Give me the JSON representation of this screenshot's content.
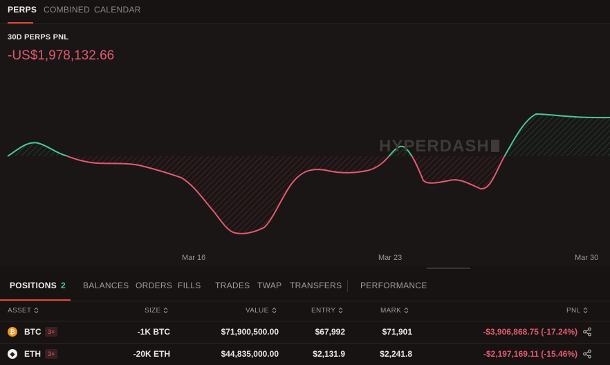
{
  "top_tabs": [
    {
      "label": "PERPS",
      "active": true
    },
    {
      "label": "COMBINED",
      "active": false
    },
    {
      "label": "CALENDAR",
      "active": false
    }
  ],
  "pnl": {
    "title": "30D PERPS PNL",
    "value": "-US$1,978,132.66"
  },
  "watermark": "HYPERDASH",
  "chart_data": {
    "type": "line",
    "x_tick_labels": [
      "Mar 16",
      "Mar 23",
      "Mar 30"
    ],
    "baseline": 0,
    "colors": {
      "positive": "#4cc79a",
      "negative": "#e45a6e"
    }
  },
  "position_tabs": {
    "items": [
      {
        "label": "POSITIONS",
        "badge": "2",
        "active": true
      },
      {
        "label": "BALANCES"
      },
      {
        "label": "ORDERS"
      },
      {
        "label": "FILLS"
      },
      {
        "label": "TRADES"
      },
      {
        "label": "TWAP"
      },
      {
        "label": "TRANSFERS"
      },
      {
        "label": "PERFORMANCE"
      }
    ]
  },
  "table": {
    "headers": {
      "asset": "ASSET",
      "size": "SIZE",
      "value": "VALUE",
      "entry": "ENTRY",
      "mark": "MARK",
      "pnl": "PNL"
    },
    "rows": [
      {
        "icon": "bitcoin-icon",
        "asset": "BTC",
        "leverage": "3×",
        "size": "-1K BTC",
        "value": "$71,900,500.00",
        "entry": "$67,992",
        "mark": "$71,901",
        "pnl": "-$3,906,868.75 (-17.24%)"
      },
      {
        "icon": "ethereum-icon",
        "asset": "ETH",
        "leverage": "3×",
        "size": "-20K ETH",
        "value": "$44,835,000.00",
        "entry": "$2,131.9",
        "mark": "$2,241.8",
        "pnl": "-$2,197,169.11 (-15.46%)"
      }
    ]
  }
}
